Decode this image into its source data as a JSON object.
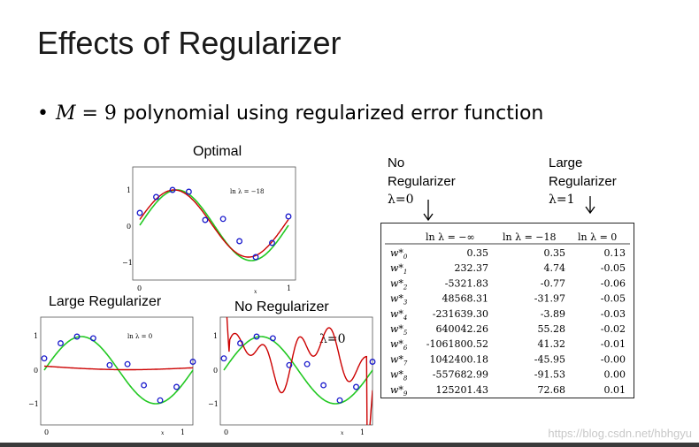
{
  "slide": {
    "title": "Effects of Regularizer",
    "bullet": {
      "prefix": "•",
      "math_var": "M",
      "math_eq": " = 9",
      "text": " polynomial using regularized error function"
    },
    "watermark": "https://blog.csdn.net/hbhgyu"
  },
  "captions": {
    "optimal": "Optimal",
    "large_regularizer": "Large Regularizer",
    "no_regularizer": "No Regularizer",
    "table_left_header": [
      "No",
      "Regularizer",
      "λ=0"
    ],
    "table_right_header": [
      "Large",
      "Regularizer",
      "λ=1"
    ]
  },
  "plots": {
    "optimal": {
      "label": "ln λ = −18",
      "xticks": [
        "0",
        "1"
      ],
      "yticks": [
        "1",
        "0",
        "−1"
      ],
      "xlabel": "x"
    },
    "large": {
      "label": "ln λ = 0",
      "xticks": [
        "0",
        "1"
      ],
      "yticks": [
        "1",
        "0",
        "−1"
      ],
      "xlabel": "x"
    },
    "none": {
      "label": "λ=0",
      "xticks": [
        "0",
        "1"
      ],
      "yticks": [
        "1",
        "0",
        "−1"
      ],
      "xlabel": "x"
    },
    "colors": {
      "green": "#22c822",
      "red": "#cc0000",
      "points": "#1a1acc"
    }
  },
  "table": {
    "headers": [
      "ln λ = −∞",
      "ln λ = −18",
      "ln λ = 0"
    ],
    "rows": [
      {
        "w": "w*",
        "sub": "0",
        "vals": [
          "0.35",
          "0.35",
          "0.13"
        ]
      },
      {
        "w": "w*",
        "sub": "1",
        "vals": [
          "232.37",
          "4.74",
          "-0.05"
        ]
      },
      {
        "w": "w*",
        "sub": "2",
        "vals": [
          "-5321.83",
          "-0.77",
          "-0.06"
        ]
      },
      {
        "w": "w*",
        "sub": "3",
        "vals": [
          "48568.31",
          "-31.97",
          "-0.05"
        ]
      },
      {
        "w": "w*",
        "sub": "4",
        "vals": [
          "-231639.30",
          "-3.89",
          "-0.03"
        ]
      },
      {
        "w": "w*",
        "sub": "5",
        "vals": [
          "640042.26",
          "55.28",
          "-0.02"
        ]
      },
      {
        "w": "w*",
        "sub": "6",
        "vals": [
          "-1061800.52",
          "41.32",
          "-0.01"
        ]
      },
      {
        "w": "w*",
        "sub": "7",
        "vals": [
          "1042400.18",
          "-45.95",
          "-0.00"
        ]
      },
      {
        "w": "w*",
        "sub": "8",
        "vals": [
          "-557682.99",
          "-91.53",
          "0.00"
        ]
      },
      {
        "w": "w*",
        "sub": "9",
        "vals": [
          "125201.43",
          "72.68",
          "0.01"
        ]
      }
    ]
  }
}
